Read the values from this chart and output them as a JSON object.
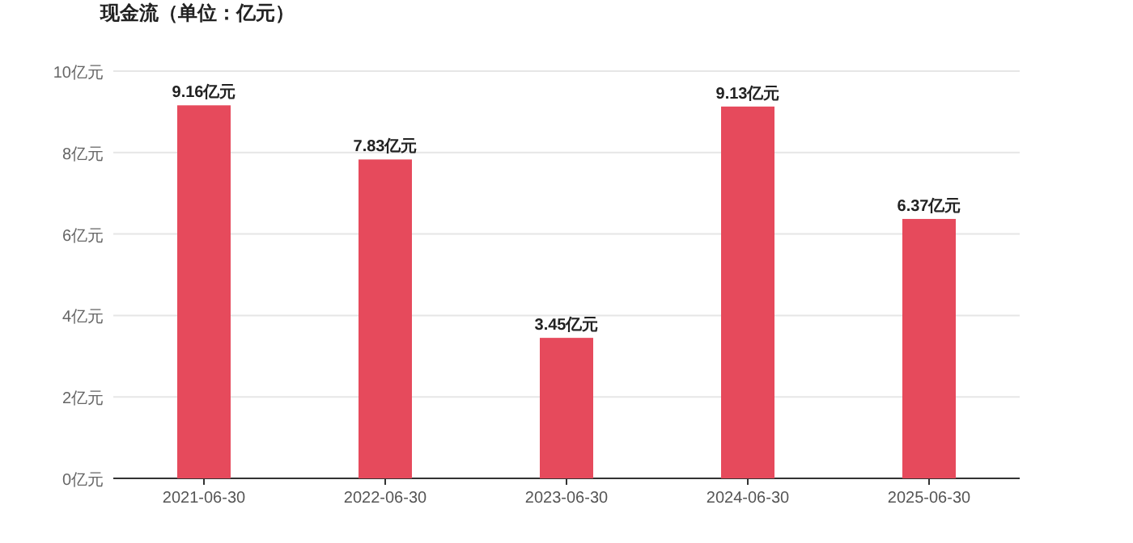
{
  "chart_data": {
    "type": "bar",
    "title": "现金流（单位：亿元）",
    "categories": [
      "2021-06-30",
      "2022-06-30",
      "2023-06-30",
      "2024-06-30",
      "2025-06-30"
    ],
    "values": [
      9.16,
      7.83,
      3.45,
      9.13,
      6.37
    ],
    "value_labels": [
      "9.16亿元",
      "7.83亿元",
      "3.45亿元",
      "9.13亿元",
      "6.37亿元"
    ],
    "color": "#e64a5c",
    "ylim": [
      0,
      10
    ],
    "yticks": [
      {
        "value": 0,
        "label": "0亿元"
      },
      {
        "value": 2,
        "label": "2亿元"
      },
      {
        "value": 4,
        "label": "4亿元"
      },
      {
        "value": 6,
        "label": "6亿元"
      },
      {
        "value": 8,
        "label": "8亿元"
      },
      {
        "value": 10,
        "label": "10亿元"
      }
    ],
    "grid": "y",
    "legend": false
  }
}
